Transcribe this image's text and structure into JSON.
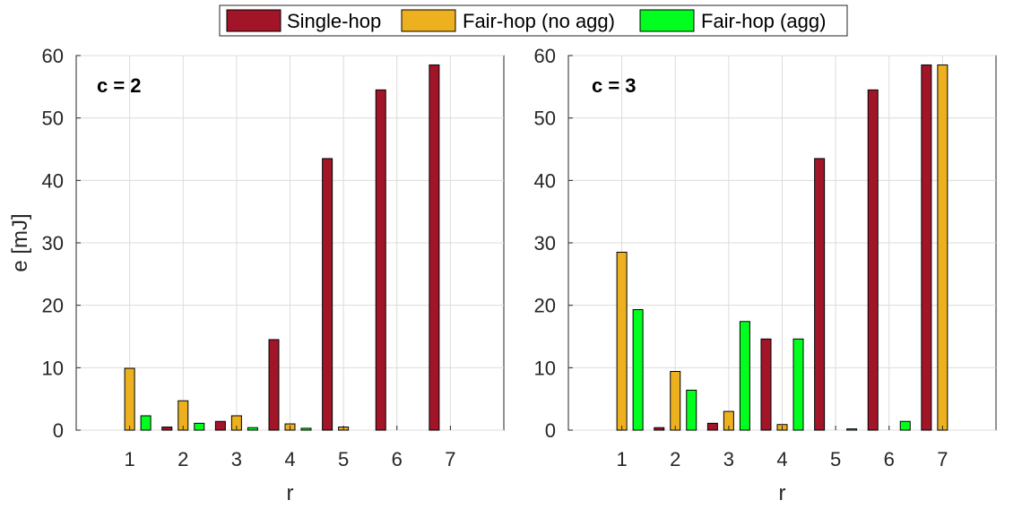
{
  "legend": {
    "placement": "top-center",
    "items": [
      {
        "label": "Single-hop",
        "color": "#A21529"
      },
      {
        "label": "Fair-hop (no agg)",
        "color": "#EDB120"
      },
      {
        "label": "Fair-hop (agg)",
        "color": "#00FF1E"
      }
    ]
  },
  "chart_data": [
    {
      "type": "bar",
      "annotation": "c = 2",
      "xlabel": "r",
      "ylabel": "e [mJ]",
      "categories": [
        "1",
        "2",
        "3",
        "4",
        "5",
        "6",
        "7"
      ],
      "ylim": [
        0,
        60
      ],
      "yticks": [
        0,
        10,
        20,
        30,
        40,
        50,
        60
      ],
      "grid": true,
      "series": [
        {
          "name": "Single-hop",
          "values": [
            0,
            0.5,
            1.4,
            14.5,
            43.5,
            54.5,
            58.5
          ]
        },
        {
          "name": "Fair-hop (no agg)",
          "values": [
            9.9,
            4.7,
            2.3,
            1.0,
            0.5,
            0,
            0
          ]
        },
        {
          "name": "Fair-hop (agg)",
          "values": [
            2.3,
            1.1,
            0.4,
            0.3,
            0,
            0,
            0
          ]
        }
      ]
    },
    {
      "type": "bar",
      "annotation": "c = 3",
      "xlabel": "r",
      "ylabel": "",
      "categories": [
        "1",
        "2",
        "3",
        "4",
        "5",
        "6",
        "7"
      ],
      "ylim": [
        0,
        60
      ],
      "yticks": [
        0,
        10,
        20,
        30,
        40,
        50,
        60
      ],
      "grid": true,
      "series": [
        {
          "name": "Single-hop",
          "values": [
            0,
            0.4,
            1.1,
            14.6,
            43.5,
            54.5,
            58.5
          ]
        },
        {
          "name": "Fair-hop (no agg)",
          "values": [
            28.5,
            9.4,
            3.0,
            0.9,
            0,
            0,
            58.5
          ]
        },
        {
          "name": "Fair-hop (agg)",
          "values": [
            19.3,
            6.4,
            17.4,
            14.6,
            0.2,
            1.4,
            0
          ]
        }
      ]
    }
  ]
}
